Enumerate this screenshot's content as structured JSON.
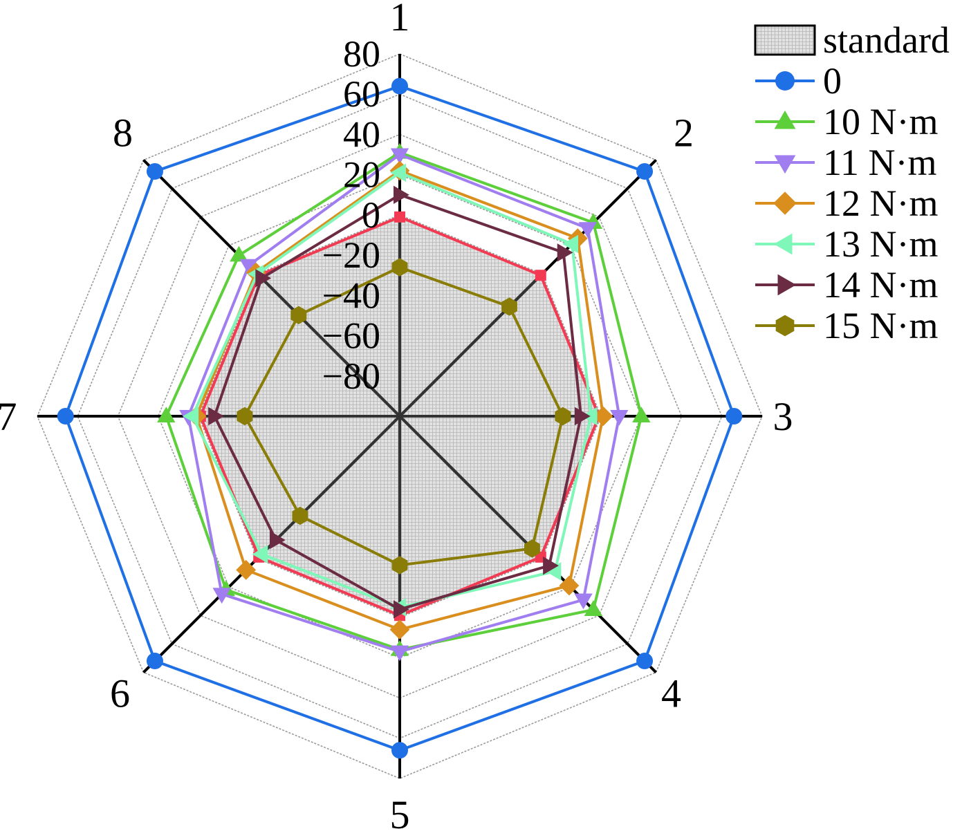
{
  "chart_data": {
    "type": "radar",
    "axes": [
      "1",
      "2",
      "3",
      "4",
      "5",
      "6",
      "7",
      "8"
    ],
    "rlim": [
      -100,
      80
    ],
    "ticks": [
      80,
      60,
      40,
      20,
      0,
      -20,
      -40,
      -60,
      -80
    ],
    "tick_labels": [
      "80",
      "60",
      "40",
      "20",
      "0",
      "−20",
      "−40",
      "−60",
      "−80"
    ],
    "grid": true,
    "legend_position": "top-right",
    "series": [
      {
        "name": "standard",
        "values": [
          -1,
          -1,
          -1,
          -1,
          -1,
          -1,
          -1,
          -1
        ],
        "color": "#d9d9d9",
        "marker": "none",
        "filled": true
      },
      {
        "name": "0",
        "values": [
          64,
          72,
          66,
          72,
          66,
          72,
          66,
          72
        ],
        "color": "#1f6fe5",
        "marker": "circle"
      },
      {
        "name": "10 N·m",
        "values": [
          31,
          36,
          20,
          36,
          16,
          22,
          16,
          13
        ],
        "color": "#5ccf3a",
        "marker": "triangle-up"
      },
      {
        "name": "11 N·m",
        "values": [
          30,
          32,
          9,
          29,
          17,
          25,
          5,
          6
        ],
        "color": "#a17ef0",
        "marker": "triangle-down"
      },
      {
        "name": "12 N·m",
        "values": [
          22,
          25,
          1,
          19,
          6,
          8,
          1,
          1
        ],
        "color": "#d98e1e",
        "marker": "diamond"
      },
      {
        "name": "13 N·m",
        "values": [
          21,
          21,
          -5,
          9,
          -5,
          -3,
          3,
          0
        ],
        "color": "#7ef7b8",
        "marker": "triangle-left"
      },
      {
        "name": "14 N·m",
        "values": [
          10,
          15,
          -10,
          5,
          -4,
          -13,
          -8,
          -3
        ],
        "color": "#6b2b43",
        "marker": "triangle-right"
      },
      {
        "name": "15 N·m",
        "values": [
          -26,
          -23,
          -19,
          -7,
          -26,
          -30,
          -23,
          -29
        ],
        "color": "#8a7d07",
        "marker": "hexagon"
      }
    ]
  }
}
